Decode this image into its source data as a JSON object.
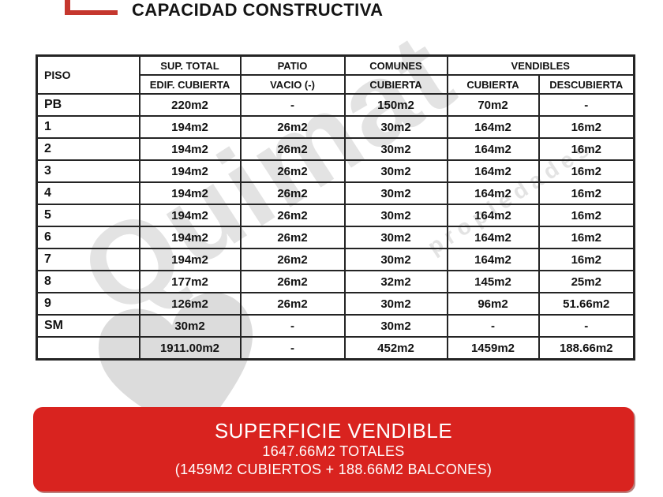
{
  "page": {
    "title": "CAPACIDAD CONSTRUCTIVA"
  },
  "logo": {
    "color": "#c5372e"
  },
  "watermark": {
    "text": "Quimat",
    "subtext": "propiedades",
    "color": "#e3e3e3"
  },
  "table": {
    "col_piso": "PISO",
    "group_headers": [
      "SUP. TOTAL",
      "PATIO",
      "COMUNES",
      "VENDIBLES"
    ],
    "sub_headers": [
      "EDIF. CUBIERTA",
      "VACIO (-)",
      "CUBIERTA",
      "CUBIERTA",
      "DESCUBIERTA"
    ],
    "rows": [
      {
        "piso": "PB",
        "cells": [
          "220m2",
          "-",
          "150m2",
          "70m2",
          "-"
        ]
      },
      {
        "piso": "1",
        "cells": [
          "194m2",
          "26m2",
          "30m2",
          "164m2",
          "16m2"
        ]
      },
      {
        "piso": "2",
        "cells": [
          "194m2",
          "26m2",
          "30m2",
          "164m2",
          "16m2"
        ]
      },
      {
        "piso": "3",
        "cells": [
          "194m2",
          "26m2",
          "30m2",
          "164m2",
          "16m2"
        ]
      },
      {
        "piso": "4",
        "cells": [
          "194m2",
          "26m2",
          "30m2",
          "164m2",
          "16m2"
        ]
      },
      {
        "piso": "5",
        "cells": [
          "194m2",
          "26m2",
          "30m2",
          "164m2",
          "16m2"
        ]
      },
      {
        "piso": "6",
        "cells": [
          "194m2",
          "26m2",
          "30m2",
          "164m2",
          "16m2"
        ]
      },
      {
        "piso": "7",
        "cells": [
          "194m2",
          "26m2",
          "30m2",
          "164m2",
          "16m2"
        ]
      },
      {
        "piso": "8",
        "cells": [
          "177m2",
          "26m2",
          "32m2",
          "145m2",
          "25m2"
        ]
      },
      {
        "piso": "9",
        "cells": [
          "126m2",
          "26m2",
          "30m2",
          "96m2",
          "51.66m2"
        ]
      },
      {
        "piso": "SM",
        "cells": [
          "30m2",
          "-",
          "30m2",
          "-",
          "-"
        ]
      },
      {
        "piso": "",
        "cells": [
          "1911.00m2",
          "-",
          "452m2",
          "1459m2",
          "188.66m2"
        ]
      }
    ]
  },
  "banner": {
    "title": "SUPERFICIE VENDIBLE",
    "line2": "1647.66M2 TOTALES",
    "line3": "(1459M2 CUBIERTOS + 188.66M2 BALCONES)",
    "background": "#d9231f",
    "text_color": "#ffffff"
  }
}
